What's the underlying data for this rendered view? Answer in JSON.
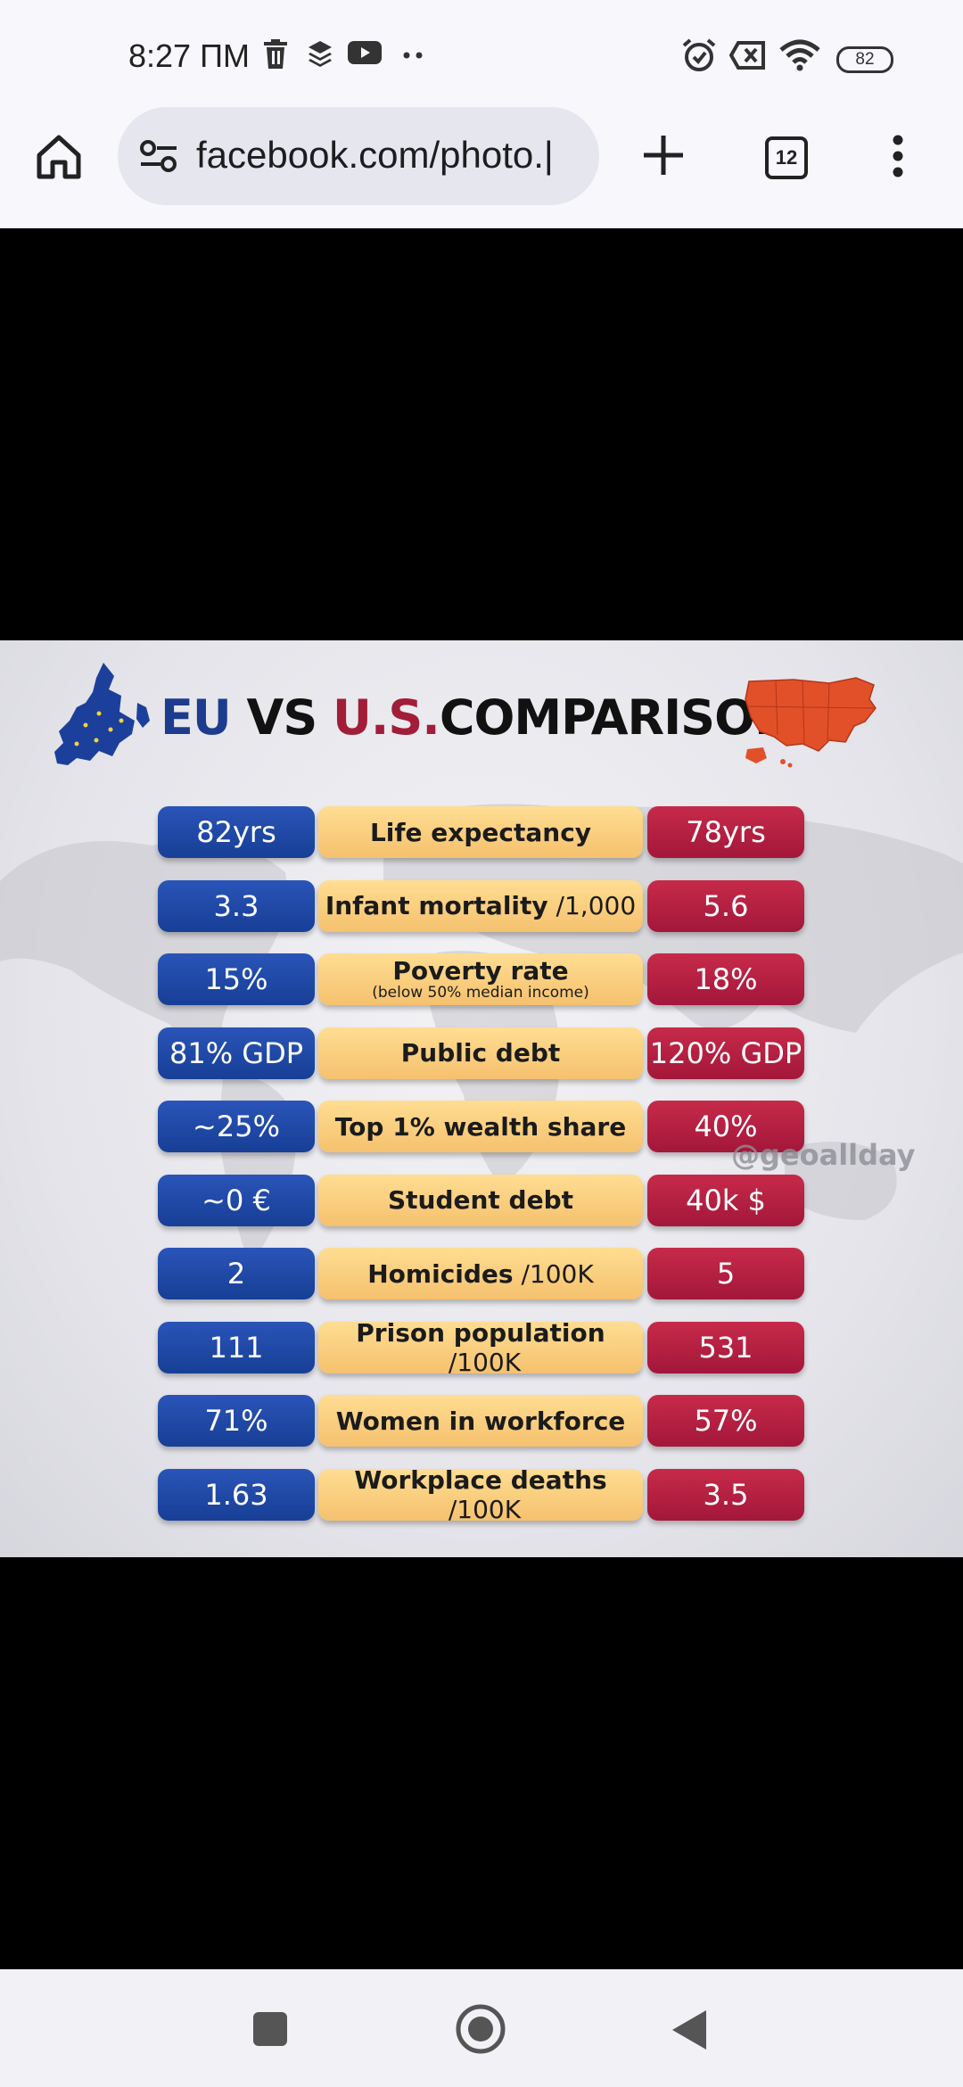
{
  "status_bar": {
    "time": "8:27 ПМ",
    "battery": "82"
  },
  "browser": {
    "url": "facebook.com/photo.|",
    "tab_count": "12"
  },
  "infographic": {
    "title_eu": "EU",
    "title_vs": " VS ",
    "title_us": "U.S.",
    "title_comparison": "COMPARISON",
    "watermark": "@geoallday",
    "colors": {
      "eu": "#1e3c8e",
      "us": "#a11d38",
      "label": "#f9cf80"
    },
    "rows": [
      {
        "eu": "82yrs",
        "label": "Life expectancy",
        "unit": "",
        "sub": "",
        "us": "78yrs"
      },
      {
        "eu": "3.3",
        "label": "Infant mortality",
        "unit": " /1,000",
        "sub": "",
        "us": "5.6"
      },
      {
        "eu": "15%",
        "label": "Poverty rate",
        "unit": "",
        "sub": "(below 50% median income)",
        "us": "18%"
      },
      {
        "eu": "81% GDP",
        "label": "Public debt",
        "unit": "",
        "sub": "",
        "us": "120% GDP"
      },
      {
        "eu": "~25%",
        "label": "Top 1% wealth share",
        "unit": "",
        "sub": "",
        "us": "40%"
      },
      {
        "eu": "~0 €",
        "label": "Student debt",
        "unit": "",
        "sub": "",
        "us": "40k $"
      },
      {
        "eu": "2",
        "label": "Homicides",
        "unit": " /100K",
        "sub": "",
        "us": "5"
      },
      {
        "eu": "111",
        "label": "Prison population",
        "unit": " /100K",
        "sub": "",
        "us": "531"
      },
      {
        "eu": "71%",
        "label": "Women in workforce",
        "unit": "",
        "sub": "",
        "us": "57%"
      },
      {
        "eu": "1.63",
        "label": "Workplace deaths",
        "unit": " /100K",
        "sub": "",
        "us": "3.5"
      }
    ]
  }
}
